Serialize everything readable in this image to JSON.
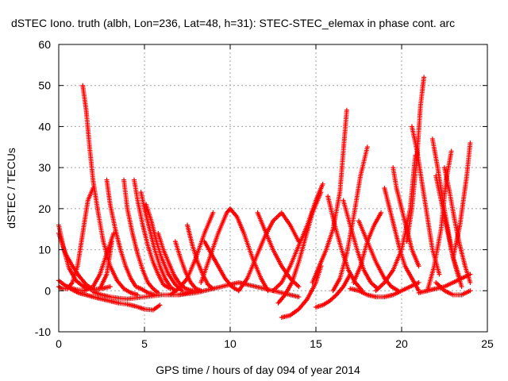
{
  "chart_data": {
    "type": "scatter",
    "title": "dSTEC Iono. truth (albh, Lon=236, Lat=48, h=31): STEC-STEC_elemax in phase cont. arc",
    "xlabel": "GPS time / hours of day 094 of year 2014",
    "ylabel": "dSTEC  / TECUs",
    "xlim": [
      0,
      25
    ],
    "ylim": [
      -10,
      60
    ],
    "xticks": [
      "0",
      "5",
      "10",
      "15",
      "20",
      "25"
    ],
    "yticks": [
      "-10",
      "0",
      "10",
      "20",
      "30",
      "40",
      "50",
      "60"
    ],
    "grid": true,
    "marker": "+",
    "color": "#ff0000",
    "series": [
      {
        "x": [
          0.0,
          0.3,
          0.6,
          0.9,
          1.2,
          1.6,
          2.0,
          2.5,
          3.0,
          3.5,
          4.0,
          4.5,
          5.0,
          5.5,
          5.9
        ],
        "y": [
          2.5,
          1.5,
          0.7,
          0.0,
          -0.6,
          -1.0,
          -1.5,
          -2.0,
          -2.5,
          -3.0,
          -3.3,
          -3.8,
          -4.5,
          -4.7,
          -3.5
        ]
      },
      {
        "x": [
          0.0,
          0.3,
          0.6,
          1.0,
          1.5,
          2.0,
          2.5,
          3.0
        ],
        "y": [
          16,
          10,
          5.5,
          2.5,
          0.8,
          0.2,
          0.5,
          1.0
        ]
      },
      {
        "x": [
          0.0,
          0.2,
          0.5,
          0.8,
          1.1,
          1.4,
          1.7,
          2.0
        ],
        "y": [
          1.0,
          0.5,
          0.5,
          2,
          6,
          14,
          22,
          25
        ]
      },
      {
        "x": [
          0.0,
          0.4,
          0.8,
          1.2,
          1.6,
          2.0,
          2.4,
          2.8,
          3.1
        ],
        "y": [
          14,
          9,
          6,
          3.5,
          1.5,
          0.3,
          0.5,
          4,
          12
        ]
      },
      {
        "x": [
          1.4,
          1.6,
          1.8,
          2.0,
          2.3,
          2.6,
          3.0,
          3.4,
          3.8,
          4.2,
          4.6
        ],
        "y": [
          50,
          44,
          35,
          27,
          19,
          12,
          6,
          2.5,
          0.5,
          -0.5,
          -1.0
        ]
      },
      {
        "x": [
          0.5,
          1.0,
          1.5,
          2.0,
          2.4,
          2.8,
          3.2
        ],
        "y": [
          1.0,
          0.3,
          0.0,
          1.0,
          4,
          9,
          14
        ]
      },
      {
        "x": [
          2.8,
          3.0,
          3.3,
          3.6,
          3.9,
          4.2,
          4.5,
          4.8,
          5.2,
          5.6
        ],
        "y": [
          27,
          21,
          15,
          10,
          6,
          3,
          1,
          0.5,
          -0.5,
          -1.0
        ]
      },
      {
        "x": [
          3.8,
          4.0,
          4.3,
          4.6,
          4.9,
          5.2,
          5.5,
          5.8
        ],
        "y": [
          27,
          20,
          14,
          9,
          5,
          2,
          0.5,
          -0.5
        ]
      },
      {
        "x": [
          4.4,
          4.6,
          4.9,
          5.2,
          5.5,
          5.8,
          6.1,
          6.5
        ],
        "y": [
          27,
          22,
          16,
          11,
          7,
          4,
          1.5,
          0.5
        ]
      },
      {
        "x": [
          4.8,
          5.0,
          5.3,
          5.6,
          5.9,
          6.2,
          6.5,
          6.8
        ],
        "y": [
          24,
          20,
          15,
          10,
          6,
          3,
          1,
          0
        ]
      },
      {
        "x": [
          5.1,
          5.4,
          5.7,
          6.0,
          6.4,
          6.8,
          7.2
        ],
        "y": [
          21,
          17,
          12,
          8,
          4,
          1.5,
          0
        ]
      },
      {
        "x": [
          5.8,
          6.1,
          6.4,
          6.7,
          7.0,
          7.4,
          7.8
        ],
        "y": [
          14,
          10,
          7,
          4,
          2,
          0.5,
          0
        ]
      },
      {
        "x": [
          2.0,
          2.5,
          3.0,
          3.5,
          4.0,
          5.0,
          6.0,
          7.0,
          8.0
        ],
        "y": [
          -0.3,
          -1.0,
          -1.5,
          -1.8,
          -2.0,
          -1.5,
          -1.0,
          -1.0,
          0
        ]
      },
      {
        "x": [
          6.8,
          7.1,
          7.4,
          7.7,
          8.0,
          8.3
        ],
        "y": [
          12,
          8,
          4.5,
          2,
          0.5,
          0
        ]
      },
      {
        "x": [
          7.5,
          7.8,
          8.1,
          8.4,
          8.7,
          9.0
        ],
        "y": [
          16,
          11,
          7,
          4,
          1.5,
          0.5
        ]
      },
      {
        "x": [
          6.5,
          7.0,
          7.5,
          8.0,
          8.5,
          9.0
        ],
        "y": [
          -1.0,
          0.5,
          3,
          8,
          14,
          19
        ]
      },
      {
        "x": [
          8.5,
          8.9,
          9.3,
          9.7,
          10.1,
          10.5
        ],
        "y": [
          12,
          9,
          6,
          3,
          1,
          0
        ]
      },
      {
        "x": [
          8.3,
          8.8,
          9.3,
          9.8,
          10.0,
          10.4,
          10.8,
          11.3,
          11.8,
          12.2
        ],
        "y": [
          2,
          8,
          14,
          19,
          20,
          18,
          14,
          8,
          3,
          0
        ]
      },
      {
        "x": [
          7.0,
          8.0,
          9.0,
          10.0,
          10.5,
          11.0,
          12.0,
          13.0,
          14.0
        ],
        "y": [
          -1,
          -0.5,
          0.5,
          1.5,
          2.0,
          1.5,
          0.5,
          -0.5,
          -1.5
        ]
      },
      {
        "x": [
          10.5,
          11.0,
          11.5,
          12.0,
          12.5,
          13.0,
          13.5,
          14.0
        ],
        "y": [
          0,
          3,
          8,
          13,
          17,
          19,
          16,
          12
        ]
      },
      {
        "x": [
          11.6,
          12.0,
          12.5,
          13.0,
          13.5,
          14.0
        ],
        "y": [
          19,
          15,
          10,
          6,
          3,
          1
        ]
      },
      {
        "x": [
          12.8,
          13.2,
          13.6,
          14.0,
          14.4,
          14.8,
          15.3
        ],
        "y": [
          -3,
          -1,
          2,
          7,
          13,
          19,
          24
        ]
      },
      {
        "x": [
          13.0,
          13.5,
          14.0,
          14.5,
          15.0,
          15.3
        ],
        "y": [
          -6.5,
          -6,
          -4.5,
          -2,
          2,
          6
        ]
      },
      {
        "x": [
          12.5,
          13.0,
          13.5,
          14.0,
          14.5,
          15.0,
          15.4
        ],
        "y": [
          0,
          2,
          6,
          11,
          16,
          22,
          26
        ]
      },
      {
        "x": [
          15.0,
          15.4,
          15.8,
          16.2,
          16.6,
          17.0
        ],
        "y": [
          -4,
          -3.5,
          -2.5,
          -1,
          1,
          4
        ]
      },
      {
        "x": [
          14.8,
          15.2,
          15.6,
          16.0,
          16.4,
          16.8
        ],
        "y": [
          2,
          6,
          10,
          15,
          24,
          44
        ]
      },
      {
        "x": [
          15.7,
          16.1,
          16.5,
          16.9,
          17.3,
          17.7
        ],
        "y": [
          23,
          16,
          10,
          5,
          2,
          0
        ]
      },
      {
        "x": [
          16.0,
          16.4,
          16.8,
          17.2,
          17.6,
          18.0
        ],
        "y": [
          0,
          3,
          9,
          18,
          28,
          35
        ]
      },
      {
        "x": [
          16.6,
          17.0,
          17.4,
          17.8,
          18.2,
          18.6
        ],
        "y": [
          22,
          16,
          10,
          5,
          2,
          0.5
        ]
      },
      {
        "x": [
          17.5,
          18.0,
          18.5,
          19.0,
          19.4,
          19.8
        ],
        "y": [
          17,
          12,
          7,
          3,
          1,
          0
        ]
      },
      {
        "x": [
          17.2,
          17.6,
          18.0,
          18.4,
          18.8
        ],
        "y": [
          2,
          6,
          12,
          16,
          19
        ]
      },
      {
        "x": [
          17.0,
          17.5,
          18.0,
          18.5,
          19.0,
          19.5,
          20.0,
          20.5,
          21.0
        ],
        "y": [
          0.5,
          0,
          -1,
          -1.5,
          -1.5,
          -1,
          0,
          1,
          2
        ]
      },
      {
        "x": [
          19.0,
          19.3,
          19.6,
          19.9,
          20.2,
          20.6,
          21.0
        ],
        "y": [
          25,
          20,
          15,
          10,
          6,
          3,
          0
        ]
      },
      {
        "x": [
          19.5,
          19.7,
          20.0,
          20.3,
          20.6,
          21.0
        ],
        "y": [
          30,
          25,
          20,
          15,
          10,
          6
        ]
      },
      {
        "x": [
          18.5,
          19.0,
          19.5,
          20.0,
          20.5,
          20.8
        ],
        "y": [
          0,
          2,
          5,
          10,
          20,
          33
        ]
      },
      {
        "x": [
          20.6,
          20.9,
          21.2,
          21.5,
          21.8,
          22.2
        ],
        "y": [
          40,
          34,
          26,
          18,
          10,
          4
        ]
      },
      {
        "x": [
          20.3,
          20.6,
          20.9,
          21.1,
          21.3
        ],
        "y": [
          12,
          20,
          33,
          45,
          52
        ]
      },
      {
        "x": [
          21.8,
          22.1,
          22.4,
          22.7,
          23.0,
          23.4
        ],
        "y": [
          37,
          30,
          22,
          15,
          8,
          3
        ]
      },
      {
        "x": [
          21.5,
          21.9,
          22.3,
          22.6,
          22.9
        ],
        "y": [
          0,
          6,
          15,
          27,
          34
        ]
      },
      {
        "x": [
          22.0,
          22.3,
          22.6,
          22.9,
          23.2,
          23.5
        ],
        "y": [
          28,
          22,
          16,
          10,
          5,
          1
        ]
      },
      {
        "x": [
          22.5,
          22.8,
          23.1,
          23.4,
          23.7,
          24.0
        ],
        "y": [
          30,
          24,
          17,
          11,
          6,
          2
        ]
      },
      {
        "x": [
          23.0,
          23.2,
          23.4,
          23.6,
          23.8,
          24.0
        ],
        "y": [
          8,
          12,
          16,
          22,
          28,
          36
        ]
      },
      {
        "x": [
          21.0,
          21.5,
          22.0,
          22.5,
          23.0,
          23.5,
          24.0
        ],
        "y": [
          -0.5,
          0,
          0.5,
          1,
          2,
          3,
          4
        ]
      },
      {
        "x": [
          22.0,
          22.5,
          23.0,
          23.5,
          24.0
        ],
        "y": [
          2,
          0,
          -1,
          -1,
          0
        ]
      }
    ]
  }
}
